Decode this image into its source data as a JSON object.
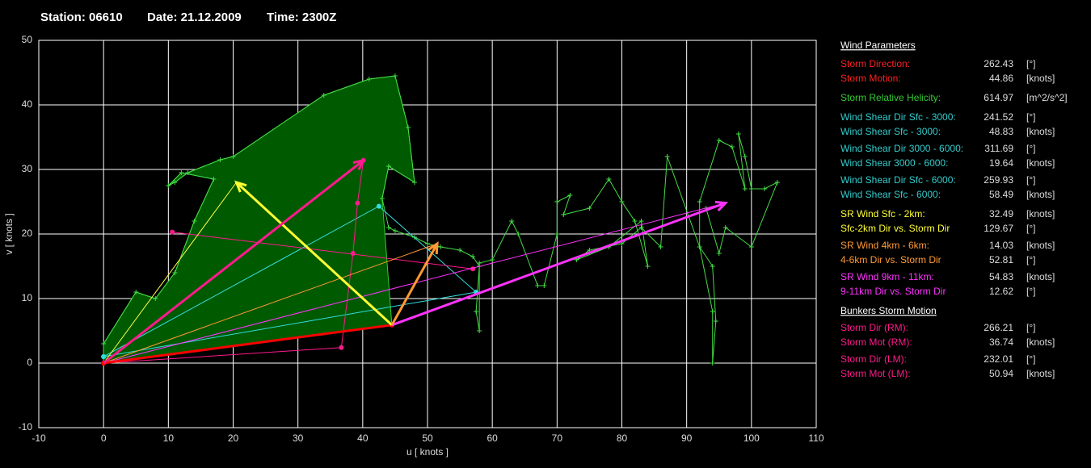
{
  "header": [
    "Station: 06610",
    "Date: 21.12.2009",
    "Time: 2300Z"
  ],
  "chart_data": {
    "type": "hodograph",
    "x_label": "u  [ knots ]",
    "y_label": "v  [ knots ]",
    "xlim": [
      -10,
      110
    ],
    "ylim": [
      -10,
      50
    ],
    "xticks": [
      -10,
      0,
      10,
      20,
      30,
      40,
      50,
      60,
      70,
      80,
      90,
      100,
      110
    ],
    "yticks": [
      -10,
      0,
      10,
      20,
      30,
      40,
      50
    ],
    "grid": true,
    "series": [
      {
        "style": "area",
        "color": "#005a00",
        "stroke": "#33cc33",
        "x": [
          0,
          0,
          5,
          8,
          11,
          14,
          17,
          12,
          10,
          11,
          13,
          18,
          20,
          34,
          41,
          45,
          47,
          48,
          44,
          43,
          44.5
        ],
        "values": [
          0,
          3,
          11,
          10,
          14,
          22,
          28.5,
          29.5,
          27.5,
          28,
          29.5,
          31.5,
          32,
          41.5,
          44,
          44.5,
          36.5,
          28,
          30.5,
          25.5,
          5.9
        ]
      },
      {
        "style": "line",
        "marker": "plus",
        "color": "#44dd44",
        "width": 1,
        "x": [
          0,
          5,
          8,
          11,
          14,
          17,
          12,
          10,
          11,
          13,
          18,
          20,
          34,
          41,
          45,
          47,
          48,
          44,
          43,
          44,
          45,
          48,
          50,
          52,
          55,
          57,
          58,
          57.5,
          58,
          58,
          60,
          63,
          64,
          67,
          68,
          70,
          70,
          72,
          71,
          75,
          78,
          80,
          82,
          84,
          83,
          78,
          73,
          75,
          80,
          83,
          86,
          87,
          92,
          94,
          94,
          94.5,
          94,
          92,
          92,
          95,
          97,
          99,
          98,
          99,
          100,
          102,
          104,
          100,
          96,
          95,
          93
        ],
        "values": [
          3,
          11,
          10,
          14,
          22,
          28.5,
          29.5,
          27.5,
          28,
          29.5,
          31.5,
          32,
          41.5,
          44,
          44.5,
          36.5,
          28,
          30.5,
          25.5,
          21,
          20.5,
          19.5,
          18.5,
          18,
          17.5,
          16.5,
          15,
          8,
          5,
          15.5,
          16,
          22,
          20,
          12,
          12,
          20,
          25,
          26,
          23,
          24,
          28.5,
          25,
          22,
          15,
          22,
          18,
          16,
          17.5,
          18.5,
          21,
          18,
          32,
          18,
          8,
          0,
          6.5,
          15,
          18,
          25,
          34.5,
          33.5,
          27,
          35.5,
          32,
          27,
          27,
          28,
          18,
          21,
          17,
          24
        ]
      },
      {
        "style": "line",
        "marker": "dot",
        "color": "#33dddd",
        "width": 1,
        "x": [
          0,
          42.5,
          57.5,
          0
        ],
        "values": [
          1,
          24.3,
          11,
          1
        ]
      },
      {
        "style": "line",
        "marker": "dot",
        "color": "#ff1a8c",
        "width": 1,
        "x": [
          0,
          36.7,
          38.5,
          39.2,
          40.1
        ],
        "values": [
          0,
          2.4,
          17,
          24.8,
          31.4
        ]
      },
      {
        "style": "line",
        "marker": "dot",
        "color": "#ff1a8c",
        "width": 1,
        "x": [
          10.6,
          57
        ],
        "values": [
          20.3,
          14.6
        ]
      },
      {
        "style": "line",
        "color": "#ffff44",
        "width": 1,
        "x": [
          0,
          20.5
        ],
        "values": [
          0,
          28
        ]
      },
      {
        "style": "line",
        "color": "#ff9933",
        "width": 1,
        "x": [
          0,
          51.5
        ],
        "values": [
          0,
          18.5
        ]
      },
      {
        "style": "line",
        "color": "#ff33ff",
        "width": 1,
        "x": [
          0,
          96
        ],
        "values": [
          0,
          24.8
        ]
      },
      {
        "style": "line",
        "marker": "dot",
        "color": "#ff0000",
        "width": 3,
        "x": [
          0,
          44.5
        ],
        "values": [
          0,
          5.9
        ]
      },
      {
        "style": "arrow",
        "color": "#ff33ff",
        "width": 3,
        "x": [
          44.5,
          96
        ],
        "values": [
          5.9,
          24.8
        ]
      },
      {
        "style": "arrow",
        "color": "#ffff33",
        "width": 3,
        "x": [
          44.5,
          20.5
        ],
        "values": [
          5.9,
          28
        ]
      },
      {
        "style": "arrow",
        "color": "#ff9933",
        "width": 3,
        "x": [
          44.5,
          51.5
        ],
        "values": [
          5.9,
          18.5
        ]
      },
      {
        "style": "arrow",
        "color": "#ff1a8c",
        "width": 3,
        "x": [
          0,
          40.1
        ],
        "values": [
          0,
          31.4
        ]
      }
    ]
  },
  "parameters": [
    {
      "heading": "Wind Parameters",
      "rows": [
        {
          "label": "Storm Direction:",
          "value": 262.43,
          "unit": "[°]",
          "color": "#ff2020"
        },
        {
          "label": "Storm Motion:",
          "value": 44.86,
          "unit": "[knots]",
          "color": "#ff2020"
        },
        {
          "label": "Storm Relative Helicity:",
          "value": 614.97,
          "unit": "[m^2/s^2]",
          "color": "#33cc33"
        },
        {
          "label": "Wind Shear Dir Sfc - 3000:",
          "value": 241.52,
          "unit": "[°]",
          "color": "#33cccc"
        },
        {
          "label": "Wind Shear Sfc - 3000:",
          "value": 48.83,
          "unit": "[knots]",
          "color": "#33cccc"
        },
        {
          "label": "Wind Shear Dir 3000 - 6000:",
          "value": 311.69,
          "unit": "[°]",
          "color": "#33cccc"
        },
        {
          "label": "Wind Shear 3000 - 6000:",
          "value": 19.64,
          "unit": "[knots]",
          "color": "#33cccc"
        },
        {
          "label": "Wind Shear Dir Sfc - 6000:",
          "value": 259.93,
          "unit": "[°]",
          "color": "#33cccc"
        },
        {
          "label": "Wind Shear Sfc - 6000:",
          "value": 58.49,
          "unit": "[knots]",
          "color": "#33cccc"
        },
        {
          "label": "SR Wind Sfc - 2km:",
          "value": 32.49,
          "unit": "[knots]",
          "color": "#ffff33"
        },
        {
          "label": "Sfc-2km Dir vs. Storm Dir",
          "value": 129.67,
          "unit": "[°]",
          "color": "#ffff33"
        },
        {
          "label": "SR Wind 4km - 6km:",
          "value": 14.03,
          "unit": "[knots]",
          "color": "#ff9933"
        },
        {
          "label": "4-6km Dir vs. Storm Dir",
          "value": 52.81,
          "unit": "[°]",
          "color": "#ff9933"
        },
        {
          "label": "SR Wind 9km - 11km:",
          "value": 54.83,
          "unit": "[knots]",
          "color": "#ff33ff"
        },
        {
          "label": "9-11km Dir vs. Storm Dir",
          "value": 12.62,
          "unit": "[°]",
          "color": "#ff33ff"
        }
      ]
    },
    {
      "heading": "Bunkers Storm Motion",
      "rows": [
        {
          "label": "Storm Dir (RM):",
          "value": 266.21,
          "unit": "[°]",
          "color": "#ff1a8c"
        },
        {
          "label": "Storm Mot (RM):",
          "value": 36.74,
          "unit": "[knots]",
          "color": "#ff1a8c"
        },
        {
          "label": "Storm Dir (LM):",
          "value": 232.01,
          "unit": "[°]",
          "color": "#ff1a8c"
        },
        {
          "label": "Storm Mot (LM):",
          "value": 50.94,
          "unit": "[knots]",
          "color": "#ff1a8c"
        }
      ]
    }
  ]
}
